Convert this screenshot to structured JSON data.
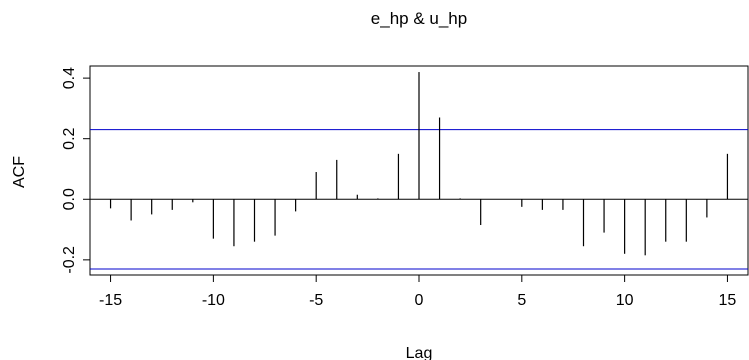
{
  "chart_data": {
    "type": "bar",
    "title": "e_hp & u_hp",
    "xlabel": "Lag",
    "ylabel": "ACF",
    "xlim": [
      -16,
      16
    ],
    "ylim": [
      -0.25,
      0.44
    ],
    "x_ticks": [
      -15,
      -10,
      -5,
      0,
      5,
      10,
      15
    ],
    "y_ticks": [
      -0.2,
      0.0,
      0.2,
      0.4
    ],
    "x_tick_labels": [
      "-15",
      "-10",
      "-5",
      "0",
      "5",
      "10",
      "15"
    ],
    "y_tick_labels": [
      "-0.2",
      "0.0",
      "0.2",
      "0.4"
    ],
    "ci_lines": [
      0.23,
      -0.23
    ],
    "ci_color": "#0000cc",
    "lags": [
      -15,
      -14,
      -13,
      -12,
      -11,
      -10,
      -9,
      -8,
      -7,
      -6,
      -5,
      -4,
      -3,
      -2,
      -1,
      0,
      1,
      2,
      3,
      4,
      5,
      6,
      7,
      8,
      9,
      10,
      11,
      12,
      13,
      14,
      15
    ],
    "values": [
      -0.03,
      -0.07,
      -0.05,
      -0.035,
      -0.01,
      -0.13,
      -0.155,
      -0.14,
      -0.12,
      -0.04,
      0.09,
      0.13,
      0.015,
      0.003,
      0.15,
      0.42,
      0.27,
      0.003,
      -0.085,
      0.0,
      -0.025,
      -0.035,
      -0.035,
      -0.155,
      -0.11,
      -0.18,
      -0.185,
      -0.14,
      -0.14,
      -0.06,
      0.15
    ]
  }
}
